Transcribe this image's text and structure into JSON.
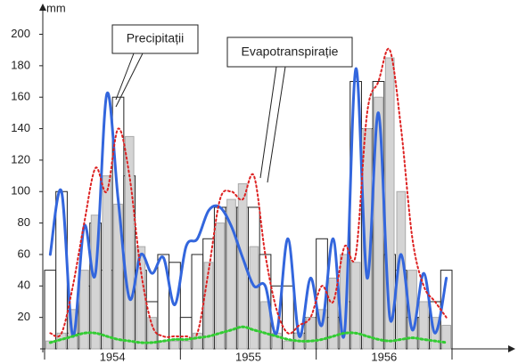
{
  "chart_data": {
    "type": "bar",
    "y_axis_label": "mm",
    "annotations": [
      "Precipitații",
      "Evapotranspirație"
    ],
    "categories": [
      null,
      null,
      null,
      null,
      null,
      null,
      "1954",
      null,
      null,
      null,
      null,
      null,
      null,
      null,
      null,
      null,
      null,
      null,
      "1955",
      null,
      null,
      null,
      null,
      null,
      null,
      null,
      null,
      null,
      null,
      null,
      "1956",
      null,
      null,
      null,
      null,
      null
    ],
    "ylim": [
      0,
      215
    ],
    "yticks": [
      20,
      40,
      60,
      80,
      100,
      120,
      140,
      160,
      180,
      200
    ],
    "grid": false,
    "series": [
      {
        "kind": "bar",
        "color": "#ffffff",
        "stroke": "#222222",
        "values": [
          50,
          100,
          10,
          40,
          80,
          50,
          160,
          110,
          50,
          30,
          60,
          55,
          20,
          60,
          70,
          90,
          90,
          90,
          90,
          60,
          40,
          40,
          10,
          20,
          70,
          20,
          30,
          170,
          140,
          170,
          60,
          50,
          20,
          20,
          30,
          50
        ]
      },
      {
        "kind": "bar",
        "color": "#d4d4d4",
        "stroke": "#aaaaaa",
        "values": [
          5,
          10,
          25,
          50,
          85,
          110,
          92,
          135,
          65,
          20,
          5,
          5,
          5,
          10,
          55,
          80,
          95,
          105,
          65,
          30,
          10,
          5,
          10,
          20,
          25,
          45,
          60,
          55,
          140,
          160,
          185,
          100,
          50,
          30,
          20,
          15
        ]
      },
      {
        "kind": "line",
        "color": "#3366dd",
        "dash": "none",
        "width": 3,
        "values": [
          60,
          100,
          8,
          78,
          48,
          162,
          95,
          32,
          60,
          48,
          58,
          28,
          65,
          70,
          88,
          90,
          78,
          58,
          40,
          40,
          10,
          70,
          8,
          45,
          15,
          70,
          10,
          178,
          45,
          150,
          20,
          60,
          12,
          48,
          10,
          45
        ]
      },
      {
        "kind": "line",
        "color": "#dd2222",
        "dash": "2,3",
        "width": 2,
        "values": [
          10,
          10,
          40,
          80,
          115,
          100,
          140,
          110,
          50,
          15,
          8,
          8,
          8,
          10,
          50,
          95,
          100,
          95,
          110,
          60,
          25,
          10,
          15,
          20,
          40,
          30,
          65,
          60,
          150,
          170,
          190,
          140,
          70,
          40,
          30,
          20
        ]
      },
      {
        "kind": "line",
        "color": "#33cc33",
        "dash": "2,3",
        "width": 3,
        "values": [
          4,
          6,
          8,
          10,
          10,
          8,
          6,
          5,
          4,
          4,
          5,
          6,
          6,
          7,
          8,
          10,
          12,
          14,
          12,
          10,
          8,
          6,
          5,
          5,
          6,
          8,
          10,
          10,
          8,
          6,
          5,
          6,
          7,
          6,
          5,
          4
        ]
      }
    ]
  }
}
